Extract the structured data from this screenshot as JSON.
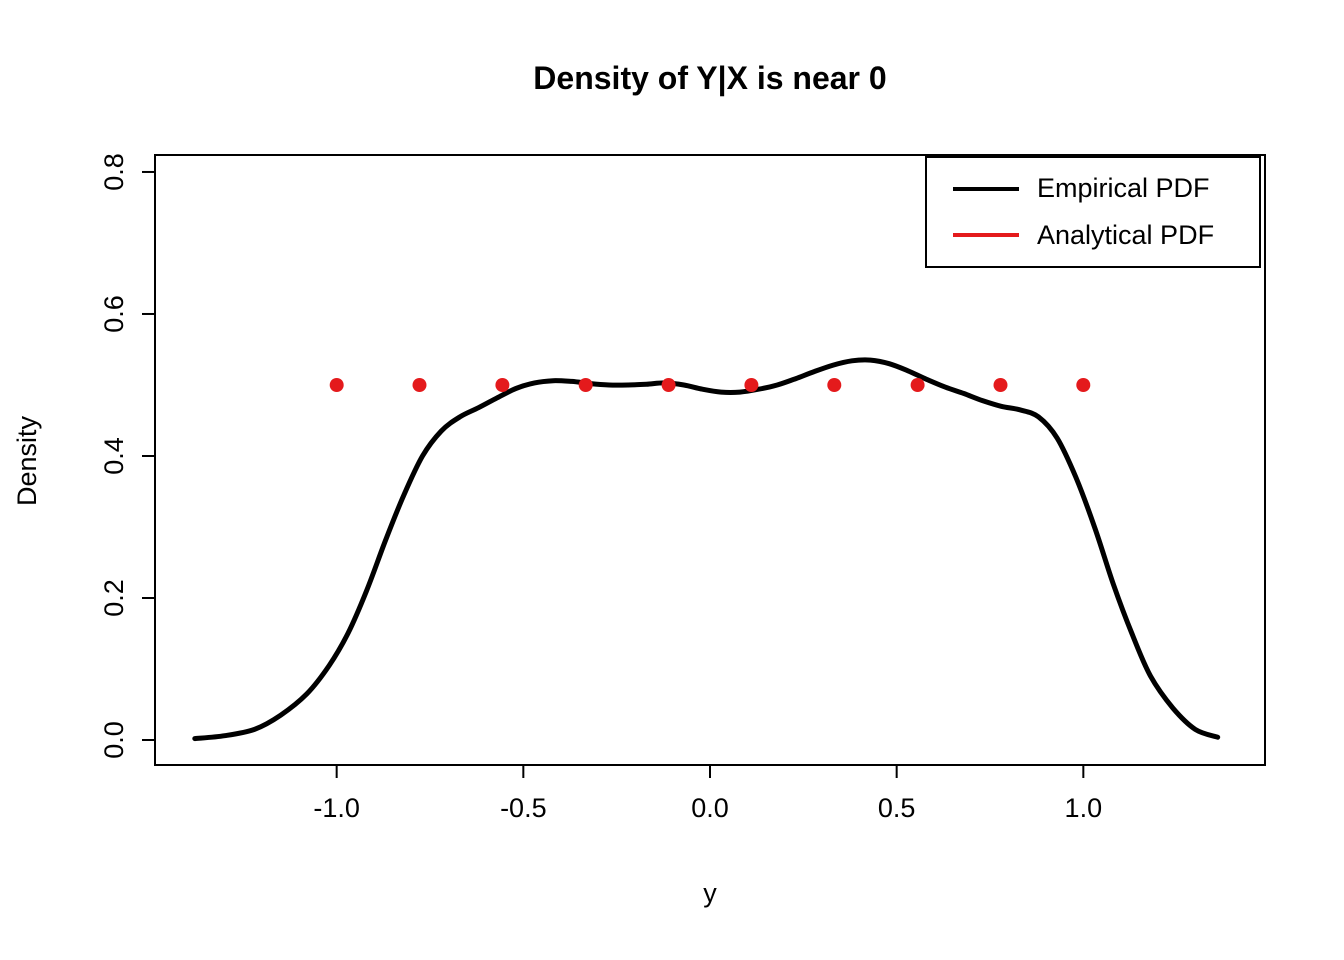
{
  "title": "Density of Y|X is near 0",
  "chart_data": {
    "type": "line",
    "title": "Density of Y|X is near 0",
    "xlabel": "y",
    "ylabel": "Density",
    "xlim": [
      -1.4866,
      1.4866
    ],
    "ylim": [
      -0.0352,
      0.8239
    ],
    "xticks": {
      "values": [
        -1.0,
        -0.5,
        0.0,
        0.5,
        1.0
      ],
      "labels": [
        "-1.0",
        "-0.5",
        "0.0",
        "0.5",
        "1.0"
      ]
    },
    "yticks": {
      "values": [
        0.0,
        0.2,
        0.4,
        0.6,
        0.8
      ],
      "labels": [
        "0.0",
        "0.2",
        "0.4",
        "0.6",
        "0.8"
      ]
    },
    "grid": false,
    "legend_position": "top-right",
    "series": [
      {
        "name": "Empirical PDF",
        "type": "line",
        "color": "#000000",
        "width": 5,
        "x": [
          -1.38,
          -1.3,
          -1.22,
          -1.15,
          -1.08,
          -1.02,
          -0.97,
          -0.92,
          -0.87,
          -0.82,
          -0.77,
          -0.72,
          -0.67,
          -0.62,
          -0.57,
          -0.52,
          -0.47,
          -0.42,
          -0.37,
          -0.32,
          -0.27,
          -0.22,
          -0.17,
          -0.12,
          -0.07,
          -0.02,
          0.03,
          0.08,
          0.13,
          0.18,
          0.23,
          0.28,
          0.33,
          0.38,
          0.43,
          0.48,
          0.53,
          0.58,
          0.63,
          0.68,
          0.73,
          0.78,
          0.83,
          0.88,
          0.93,
          0.98,
          1.03,
          1.08,
          1.13,
          1.18,
          1.24,
          1.3,
          1.36
        ],
        "y": [
          0.002,
          0.006,
          0.015,
          0.035,
          0.065,
          0.105,
          0.15,
          0.21,
          0.28,
          0.345,
          0.4,
          0.435,
          0.455,
          0.468,
          0.482,
          0.495,
          0.503,
          0.506,
          0.505,
          0.502,
          0.5,
          0.5,
          0.501,
          0.503,
          0.5,
          0.494,
          0.49,
          0.49,
          0.494,
          0.5,
          0.509,
          0.519,
          0.528,
          0.534,
          0.535,
          0.53,
          0.52,
          0.508,
          0.497,
          0.488,
          0.478,
          0.47,
          0.465,
          0.455,
          0.425,
          0.37,
          0.3,
          0.22,
          0.15,
          0.09,
          0.045,
          0.015,
          0.004
        ]
      },
      {
        "name": "Analytical PDF",
        "type": "scatter",
        "color": "#e41a1c",
        "radius": 7,
        "x": [
          -1.0,
          -0.778,
          -0.556,
          -0.333,
          -0.111,
          0.111,
          0.333,
          0.556,
          0.778,
          1.0
        ],
        "y": [
          0.5,
          0.5,
          0.5,
          0.5,
          0.5,
          0.5,
          0.5,
          0.5,
          0.5,
          0.5
        ]
      }
    ]
  }
}
